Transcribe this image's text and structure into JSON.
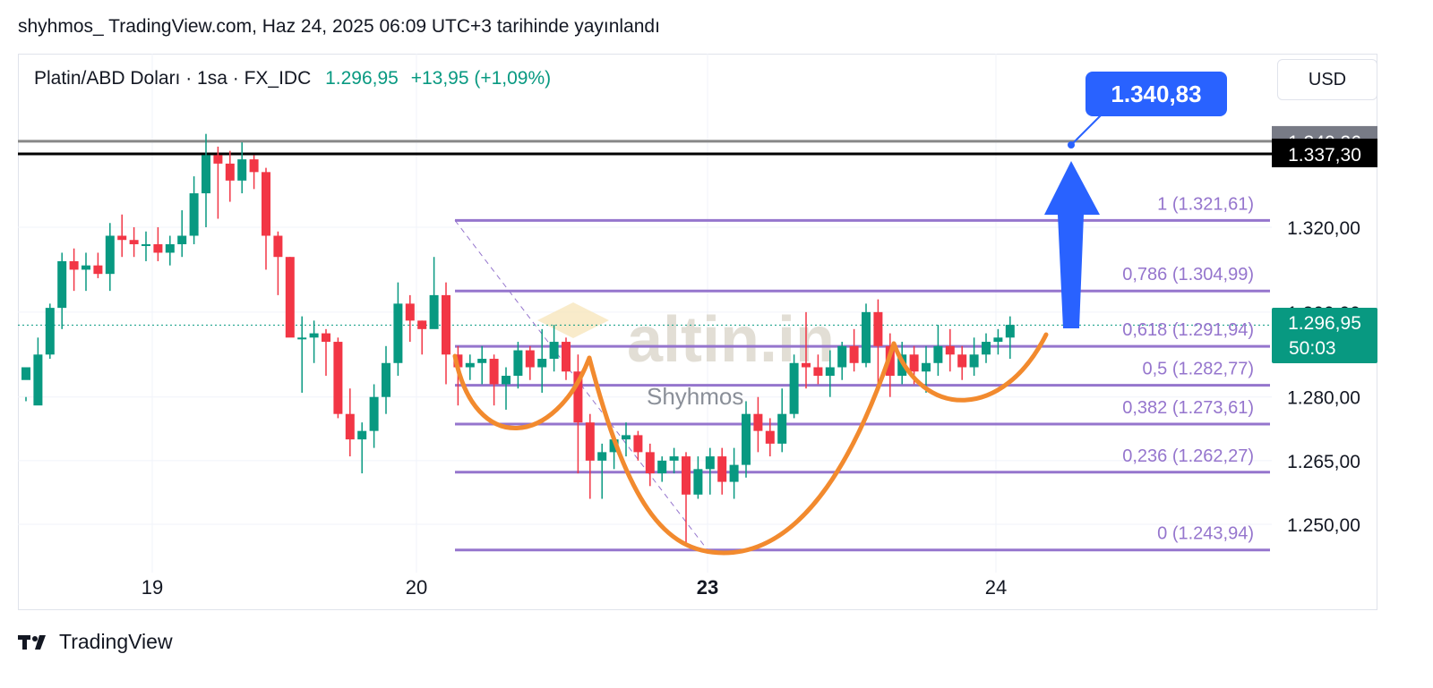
{
  "header": {
    "published": "shyhmos_ TradingView.com, Haz 24, 2025 06:09 UTC+3 tarihinde yayınlandı"
  },
  "legend": {
    "symbol": "Platin/ABD Doları · 1sa · FX_IDC",
    "last": "1.296,95",
    "change": "+13,95 (+1,09%)"
  },
  "currency": "USD",
  "callout": {
    "label": "1.340,83"
  },
  "watermark": {
    "logo": "altin.in",
    "author": "Shyhmos"
  },
  "footer": {
    "brand": "TradingView"
  },
  "colors": {
    "up": "#089981",
    "down": "#f23645",
    "fib": "#9575cd",
    "pattern": "#f28a2e",
    "arrow": "#2962ff",
    "current": "#089981"
  },
  "chart_data": {
    "type": "candlestick",
    "symbol": "Platin/ABD Doları",
    "interval": "1sa",
    "x_labels": [
      "19",
      "20",
      "23",
      "24"
    ],
    "y_ticks": [
      "1.250,00",
      "1.265,00",
      "1.280,00",
      "1.300,00",
      "1.320,00"
    ],
    "y_tick_values": [
      1250,
      1265,
      1280,
      1300,
      1320
    ],
    "ylim": [
      1236,
      1352
    ],
    "candles": [
      [
        1284,
        1287,
        1280,
        1279
      ],
      [
        1278,
        1290,
        1294,
        1279
      ],
      [
        1290,
        1301,
        1302,
        1289
      ],
      [
        1301,
        1312,
        1314,
        1296
      ],
      [
        1312,
        1310,
        1315,
        1305
      ],
      [
        1310,
        1311,
        1314,
        1305
      ],
      [
        1311,
        1309,
        1314,
        1308
      ],
      [
        1309,
        1318,
        1321,
        1305
      ],
      [
        1318,
        1317,
        1323,
        1313
      ],
      [
        1317,
        1316,
        1320,
        1313
      ],
      [
        1316,
        1316,
        1319,
        1312
      ],
      [
        1316,
        1314,
        1320,
        1312
      ],
      [
        1314,
        1316,
        1318,
        1311
      ],
      [
        1316,
        1318,
        1324,
        1313
      ],
      [
        1318,
        1328,
        1332,
        1316
      ],
      [
        1328,
        1337,
        1342,
        1320
      ],
      [
        1337,
        1335,
        1339,
        1322
      ],
      [
        1335,
        1331,
        1338,
        1326
      ],
      [
        1331,
        1336,
        1340,
        1328
      ],
      [
        1336,
        1333,
        1337,
        1329
      ],
      [
        1333,
        1318,
        1334,
        1310
      ],
      [
        1318,
        1313,
        1319,
        1304
      ],
      [
        1313,
        1294,
        1313,
        1300
      ],
      [
        1294,
        1294,
        1299,
        1281
      ],
      [
        1294,
        1295,
        1298,
        1288
      ],
      [
        1295,
        1293,
        1296,
        1285
      ],
      [
        1293,
        1276,
        1294,
        1275
      ],
      [
        1276,
        1270,
        1282,
        1266
      ],
      [
        1270,
        1272,
        1274,
        1262
      ],
      [
        1272,
        1280,
        1283,
        1268
      ],
      [
        1280,
        1288,
        1292,
        1276
      ],
      [
        1288,
        1302,
        1307,
        1285
      ],
      [
        1302,
        1298,
        1304,
        1293
      ],
      [
        1298,
        1296,
        1298,
        1290
      ],
      [
        1296,
        1304,
        1313,
        1298
      ],
      [
        1304,
        1290,
        1307,
        1283
      ],
      [
        1290,
        1287,
        1292,
        1278
      ],
      [
        1287,
        1288,
        1290,
        1284
      ],
      [
        1288,
        1289,
        1292,
        1283
      ],
      [
        1289,
        1283,
        1290,
        1278
      ],
      [
        1283,
        1285,
        1287,
        1277
      ],
      [
        1285,
        1291,
        1293,
        1282
      ],
      [
        1291,
        1287,
        1292,
        1284
      ],
      [
        1287,
        1289,
        1296,
        1281
      ],
      [
        1289,
        1293,
        1297,
        1286
      ],
      [
        1293,
        1286,
        1294,
        1284
      ],
      [
        1286,
        1274,
        1290,
        1262
      ],
      [
        1274,
        1265,
        1276,
        1256
      ],
      [
        1265,
        1267,
        1269,
        1256
      ],
      [
        1267,
        1270,
        1271,
        1263
      ],
      [
        1270,
        1271,
        1274,
        1266
      ],
      [
        1271,
        1267,
        1272,
        1265
      ],
      [
        1267,
        1262,
        1269,
        1259
      ],
      [
        1262,
        1265,
        1266,
        1260
      ],
      [
        1265,
        1266,
        1268,
        1262
      ],
      [
        1266,
        1257,
        1267,
        1245
      ],
      [
        1257,
        1263,
        1266,
        1256
      ],
      [
        1263,
        1266,
        1268,
        1257
      ],
      [
        1266,
        1260,
        1268,
        1257
      ],
      [
        1260,
        1264,
        1268,
        1256
      ],
      [
        1264,
        1276,
        1279,
        1261
      ],
      [
        1276,
        1272,
        1280,
        1267
      ],
      [
        1272,
        1269,
        1275,
        1266
      ],
      [
        1269,
        1276,
        1282,
        1267
      ],
      [
        1276,
        1288,
        1290,
        1275
      ],
      [
        1288,
        1287,
        1300,
        1282
      ],
      [
        1287,
        1285,
        1290,
        1283
      ],
      [
        1285,
        1287,
        1291,
        1280
      ],
      [
        1287,
        1292,
        1293,
        1284
      ],
      [
        1292,
        1288,
        1296,
        1286
      ],
      [
        1288,
        1300,
        1302,
        1287
      ],
      [
        1300,
        1292,
        1303,
        1283
      ],
      [
        1292,
        1285,
        1295,
        1280
      ],
      [
        1285,
        1290,
        1293,
        1283
      ],
      [
        1290,
        1286,
        1292,
        1283
      ],
      [
        1286,
        1288,
        1292,
        1281
      ],
      [
        1288,
        1292,
        1297,
        1285
      ],
      [
        1292,
        1290,
        1296,
        1286
      ],
      [
        1290,
        1287,
        1292,
        1284
      ],
      [
        1287,
        1290,
        1294,
        1285
      ],
      [
        1290,
        1293,
        1295,
        1288
      ],
      [
        1293,
        1294,
        1296,
        1290
      ],
      [
        1294,
        1297,
        1299,
        1289
      ]
    ],
    "fibonacci": [
      {
        "label": "1 (1.321,61)",
        "value": 1321.61
      },
      {
        "label": "0,786 (1.304,99)",
        "value": 1304.99
      },
      {
        "label": "0,618 (1.291,94)",
        "value": 1291.94
      },
      {
        "label": "0,5 (1.282,77)",
        "value": 1282.77
      },
      {
        "label": "0,382 (1.273,61)",
        "value": 1273.61
      },
      {
        "label": "0,236 (1.262,27)",
        "value": 1262.27
      },
      {
        "label": "0 (1.243,94)",
        "value": 1243.94
      }
    ],
    "horizontal_lines": [
      {
        "label": "1.340,26",
        "value": 1340.26,
        "color": "#888888"
      },
      {
        "label": "1.337,30",
        "value": 1337.3,
        "color": "#000000"
      }
    ],
    "target": 1340.83,
    "current_price": {
      "label": "1.296,95",
      "value": 1296.95,
      "countdown": "50:03"
    }
  }
}
